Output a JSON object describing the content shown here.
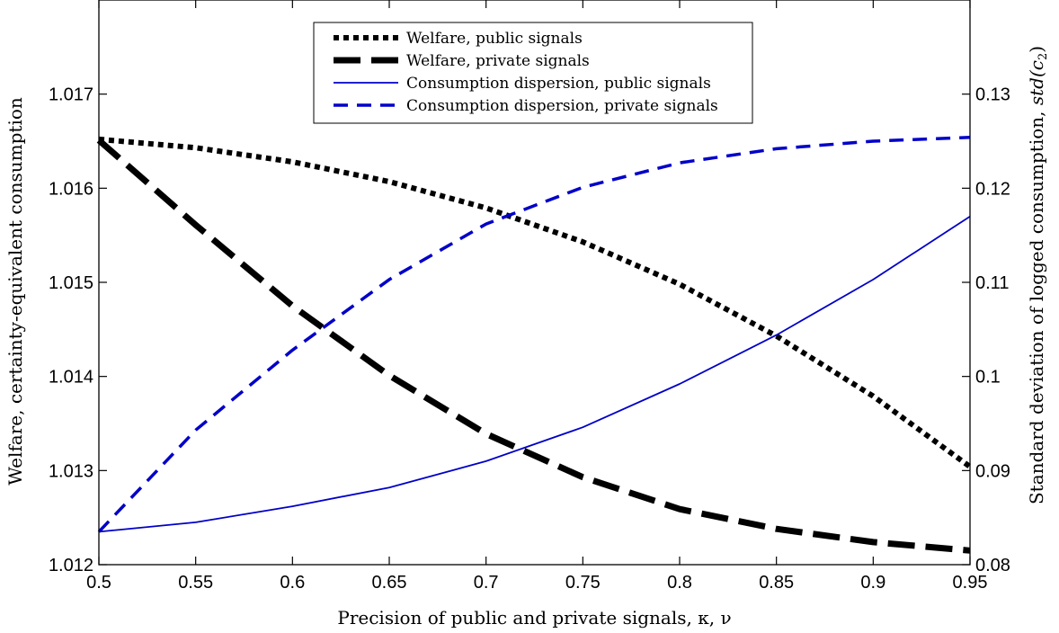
{
  "chart_data": {
    "type": "line",
    "xlabel": "Precision of public and private signals, κ, ν",
    "ylabel_left": "Welfare, certainty-equivalent consumption",
    "ylabel_right_prefix": "Standard deviation of logged consumption, ",
    "ylabel_right_math": "std(c",
    "ylabel_right_sub": "2",
    "ylabel_right_close": ")",
    "xlim": [
      0.5,
      0.95
    ],
    "ylim_left": [
      1.012,
      1.018
    ],
    "ylim_right": [
      0.08,
      0.14
    ],
    "x_ticks": [
      0.5,
      0.55,
      0.6,
      0.65,
      0.7,
      0.75,
      0.8,
      0.85,
      0.9,
      0.95
    ],
    "x_tick_labels": [
      "0.5",
      "0.55",
      "0.6",
      "0.65",
      "0.7",
      "0.75",
      "0.8",
      "0.85",
      "0.9",
      "0.95"
    ],
    "y_left_ticks": [
      1.012,
      1.013,
      1.014,
      1.015,
      1.016,
      1.017
    ],
    "y_left_tick_labels": [
      "1.012",
      "1.013",
      "1.014",
      "1.015",
      "1.016",
      "1.017"
    ],
    "y_right_ticks": [
      0.08,
      0.09,
      0.1,
      0.11,
      0.12,
      0.13
    ],
    "y_right_tick_labels": [
      "0.08",
      "0.09",
      "0.1",
      "0.11",
      "0.12",
      "0.13"
    ],
    "grid": false,
    "legend_position": "top-center",
    "x": [
      0.5,
      0.55,
      0.6,
      0.65,
      0.7,
      0.75,
      0.8,
      0.85,
      0.9,
      0.95
    ],
    "series": [
      {
        "name": "Welfare, public signals",
        "axis": "left",
        "style": "dotted",
        "color": "#000000",
        "values": [
          1.01652,
          1.01643,
          1.01628,
          1.01607,
          1.01579,
          1.01543,
          1.01498,
          1.01443,
          1.01379,
          1.01304
        ]
      },
      {
        "name": "Welfare, private signals",
        "axis": "left",
        "style": "dashed-thick",
        "color": "#000000",
        "values": [
          1.01651,
          1.01561,
          1.01475,
          1.01401,
          1.01339,
          1.01293,
          1.01259,
          1.01238,
          1.01224,
          1.01215
        ]
      },
      {
        "name": "Consumption dispersion, public signals",
        "axis": "right",
        "style": "solid",
        "color": "#0000c8",
        "values": [
          0.0835,
          0.0845,
          0.0862,
          0.0882,
          0.091,
          0.0946,
          0.0992,
          0.1044,
          0.1103,
          0.117
        ]
      },
      {
        "name": "Consumption dispersion, private signals",
        "axis": "right",
        "style": "dashed",
        "color": "#0000c8",
        "values": [
          0.0835,
          0.0943,
          0.1028,
          0.1103,
          0.1162,
          0.1201,
          0.1227,
          0.1242,
          0.125,
          0.1254
        ]
      }
    ]
  }
}
